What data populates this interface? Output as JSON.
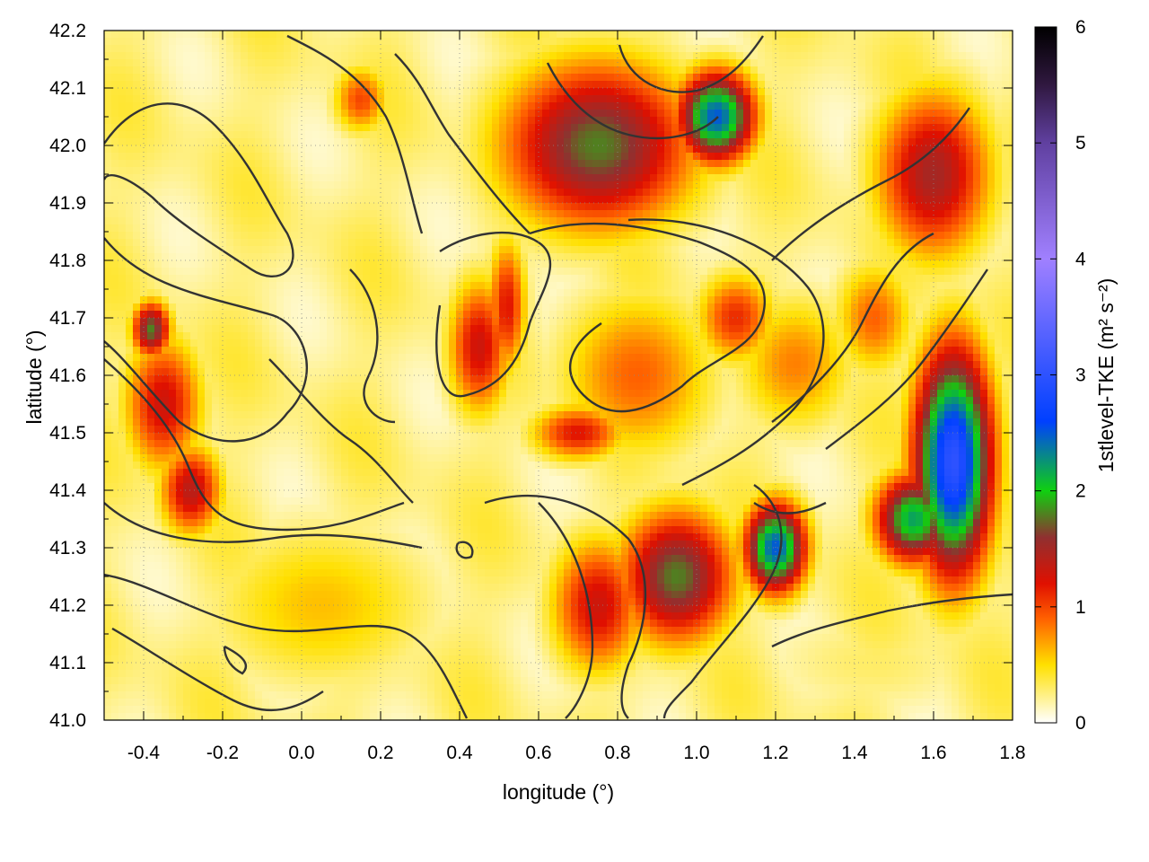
{
  "chart_data": {
    "type": "heatmap",
    "title": "",
    "xlabel": "longitude (°)",
    "ylabel": "latitude (°)",
    "xlim": [
      -0.5,
      1.8
    ],
    "ylim": [
      41.0,
      42.2
    ],
    "x_ticks": [
      "-0.4",
      "-0.2",
      "0.0",
      "0.2",
      "0.4",
      "0.6",
      "0.8",
      "1.0",
      "1.2",
      "1.4",
      "1.6",
      "1.8"
    ],
    "y_ticks": [
      "41.0",
      "41.1",
      "41.2",
      "41.3",
      "41.4",
      "41.5",
      "41.6",
      "41.7",
      "41.8",
      "41.9",
      "42.0",
      "42.1",
      "42.2"
    ],
    "grid": true,
    "colorbar": {
      "label": "1stlevel-TKE (m² s⁻²)",
      "range": [
        0,
        6
      ],
      "ticks": [
        "0",
        "1",
        "2",
        "3",
        "4",
        "5",
        "6"
      ],
      "stops": [
        {
          "value": 0.0,
          "color": "#ffffff"
        },
        {
          "value": 0.5,
          "color": "#ffe000"
        },
        {
          "value": 0.9,
          "color": "#ff6000"
        },
        {
          "value": 1.2,
          "color": "#e01000"
        },
        {
          "value": 1.6,
          "color": "#903030"
        },
        {
          "value": 2.0,
          "color": "#10d010"
        },
        {
          "value": 2.6,
          "color": "#0040ff"
        },
        {
          "value": 4.0,
          "color": "#a080ff"
        },
        {
          "value": 5.0,
          "color": "#6040a0"
        },
        {
          "value": 5.5,
          "color": "#301840"
        },
        {
          "value": 6.0,
          "color": "#000000"
        }
      ]
    },
    "features": [
      {
        "lon": 0.45,
        "lat": 41.65,
        "value": 1.3,
        "rx": 0.08,
        "ry": 0.12
      },
      {
        "lon": 0.52,
        "lat": 41.72,
        "value": 1.2,
        "rx": 0.05,
        "ry": 0.12
      },
      {
        "lon": 0.7,
        "lat": 41.5,
        "value": 1.2,
        "rx": 0.12,
        "ry": 0.05
      },
      {
        "lon": 0.85,
        "lat": 41.6,
        "value": 0.9,
        "rx": 0.2,
        "ry": 0.15
      },
      {
        "lon": 1.1,
        "lat": 41.7,
        "value": 1.1,
        "rx": 0.1,
        "ry": 0.08
      },
      {
        "lon": 1.25,
        "lat": 41.62,
        "value": 0.8,
        "rx": 0.15,
        "ry": 0.12
      },
      {
        "lon": -0.35,
        "lat": 41.55,
        "value": 1.3,
        "rx": 0.1,
        "ry": 0.12
      },
      {
        "lon": -0.28,
        "lat": 41.4,
        "value": 1.4,
        "rx": 0.08,
        "ry": 0.08
      },
      {
        "lon": -0.38,
        "lat": 41.68,
        "value": 1.8,
        "rx": 0.05,
        "ry": 0.05
      },
      {
        "lon": 0.15,
        "lat": 42.08,
        "value": 1.0,
        "rx": 0.07,
        "ry": 0.06
      },
      {
        "lon": 0.75,
        "lat": 42.0,
        "value": 1.8,
        "rx": 0.25,
        "ry": 0.15
      },
      {
        "lon": 1.05,
        "lat": 42.05,
        "value": 2.5,
        "rx": 0.1,
        "ry": 0.08
      },
      {
        "lon": 1.6,
        "lat": 41.95,
        "value": 1.5,
        "rx": 0.15,
        "ry": 0.15
      },
      {
        "lon": 1.65,
        "lat": 41.45,
        "value": 3.0,
        "rx": 0.1,
        "ry": 0.2
      },
      {
        "lon": 1.55,
        "lat": 41.35,
        "value": 2.2,
        "rx": 0.1,
        "ry": 0.08
      },
      {
        "lon": 1.2,
        "lat": 41.3,
        "value": 2.5,
        "rx": 0.08,
        "ry": 0.08
      },
      {
        "lon": 0.95,
        "lat": 41.25,
        "value": 1.8,
        "rx": 0.15,
        "ry": 0.12
      },
      {
        "lon": 0.75,
        "lat": 41.2,
        "value": 1.3,
        "rx": 0.12,
        "ry": 0.12
      },
      {
        "lon": 1.45,
        "lat": 41.1,
        "value": 0.3,
        "rx": 0.3,
        "ry": 0.1
      },
      {
        "lon": 0.05,
        "lat": 41.2,
        "value": 0.6,
        "rx": 0.3,
        "ry": 0.15
      },
      {
        "lon": 1.45,
        "lat": 41.7,
        "value": 0.9,
        "rx": 0.1,
        "ry": 0.1
      }
    ]
  }
}
